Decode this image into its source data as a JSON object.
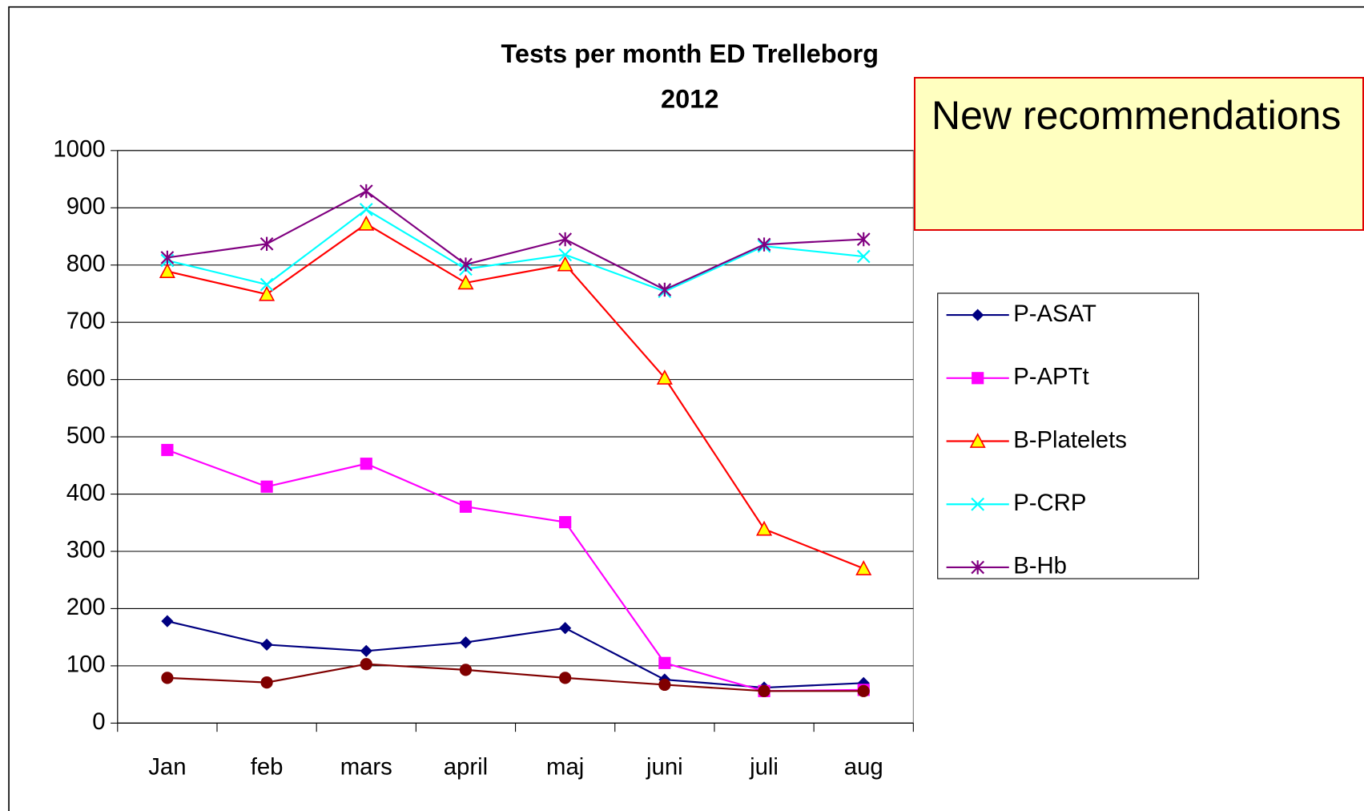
{
  "chart_data": {
    "type": "line",
    "title": "Tests per month ED Trelleborg",
    "subtitle": "2012",
    "annotation": "New recommendations",
    "categories": [
      "Jan",
      "feb",
      "mars",
      "april",
      "maj",
      "juni",
      "juli",
      "aug"
    ],
    "ylim": [
      0,
      1000
    ],
    "yticks": [
      0,
      100,
      200,
      300,
      400,
      500,
      600,
      700,
      800,
      900,
      1000
    ],
    "grid": true,
    "legend": "right",
    "series": [
      {
        "name": "P-ASAT",
        "color": "#000080",
        "marker": "diamond",
        "values": [
          178,
          137,
          126,
          141,
          166,
          76,
          62,
          70
        ]
      },
      {
        "name": "P-APTt",
        "color": "#ff00ff",
        "marker": "square",
        "values": [
          477,
          413,
          453,
          378,
          351,
          105,
          56,
          58
        ]
      },
      {
        "name": "B-Platelets",
        "color": "#ff0000",
        "marker": "triangle",
        "values": [
          789,
          749,
          872,
          769,
          801,
          603,
          339,
          270
        ]
      },
      {
        "name": "P-CRP",
        "color": "#00ffff",
        "marker": "x",
        "values": [
          808,
          766,
          897,
          793,
          818,
          754,
          833,
          815
        ]
      },
      {
        "name": "B-Hb",
        "color": "#800080",
        "marker": "star",
        "values": [
          813,
          837,
          929,
          801,
          845,
          757,
          836,
          845
        ]
      },
      {
        "color": "#800000",
        "marker": "circle",
        "values": [
          79,
          71,
          103,
          93,
          79,
          67,
          56,
          56
        ]
      }
    ]
  }
}
